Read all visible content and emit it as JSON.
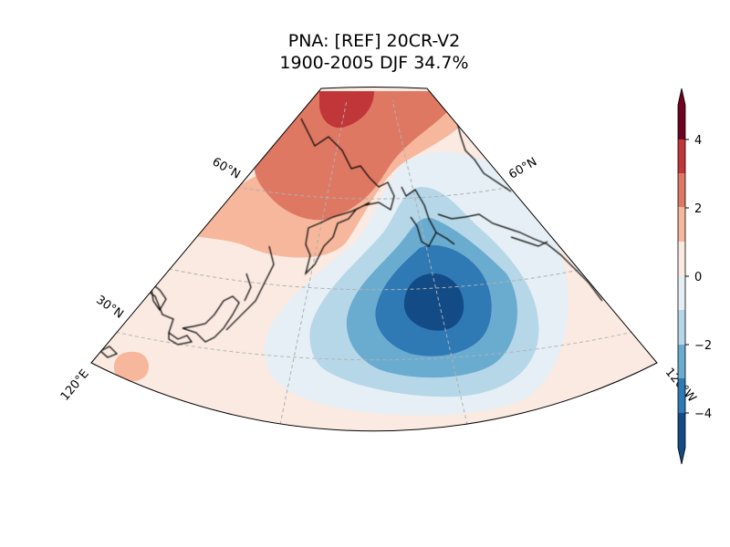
{
  "title": {
    "line1": "PNA: [REF] 20CR-V2",
    "line2": "1900-2005 DJF 34.7%"
  },
  "map": {
    "projection": "polar sector (Lambert conformal style), North Pacific / North America",
    "lon_labels": [
      "120°E",
      "120°W"
    ],
    "lat_labels_left": [
      "30°N",
      "60°N"
    ],
    "lat_labels_right": [
      "60°N"
    ],
    "field": "PNA pattern anomaly",
    "centers": [
      {
        "name": "negative center (Aleutian / North Pacific)",
        "value": -4.5
      },
      {
        "name": "positive center (Siberia / NE Asia)",
        "value": 3.5
      },
      {
        "name": "weak positive (western Pacific near Japan)",
        "value": 1.5
      }
    ]
  },
  "colorbar": {
    "ticks": [
      "4",
      "2",
      "0",
      "−2",
      "−4"
    ],
    "levels": [
      -5,
      -4,
      -3,
      -2,
      -1,
      1,
      2,
      3,
      4,
      5
    ],
    "colors": [
      "#134b87",
      "#2f79b5",
      "#6aacd0",
      "#b6d7e8",
      "#e5eff5",
      "#faeae1",
      "#f6b79c",
      "#de7863",
      "#c13639",
      "#6e0220"
    ]
  }
}
